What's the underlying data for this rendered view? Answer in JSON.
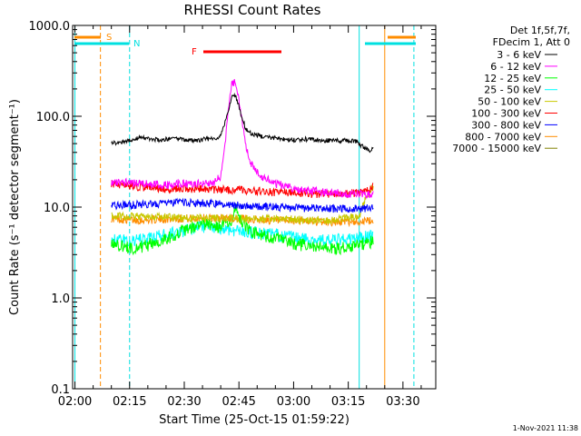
{
  "chart_data": {
    "type": "line",
    "title": "RHESSI Count Rates",
    "xlabel": "Start Time (25-Oct-15 01:59:22)",
    "ylabel": "Count Rate (s⁻¹ detector segment⁻¹)",
    "x_scale": "time",
    "y_scale": "log",
    "xlim": [
      "01:59:22",
      "03:39:00"
    ],
    "ylim": [
      0.1,
      1000
    ],
    "x_ticks": [
      "02:00",
      "02:15",
      "02:30",
      "02:45",
      "03:00",
      "03:15",
      "03:30"
    ],
    "x_tick_values": [
      120,
      135,
      150,
      165,
      180,
      195,
      210
    ],
    "y_ticks": [
      "0.1",
      "1.0",
      "10.0",
      "100.0",
      "1000.0"
    ],
    "y_tick_values": [
      0.1,
      1,
      10,
      100,
      1000
    ],
    "grid": false,
    "legend_position": "right",
    "legend_header": [
      "Det 1f,5f,7f,",
      "FDecim 1, Att 0"
    ],
    "series": [
      {
        "name": "3 - 6 keV",
        "color": "#000000",
        "x": [
          "02:10",
          "02:12",
          "02:15",
          "02:18",
          "02:21",
          "02:24",
          "02:27",
          "02:30",
          "02:33",
          "02:36",
          "02:39",
          "02:40",
          "02:41",
          "02:42",
          "02:43",
          "02:44",
          "02:45",
          "02:46",
          "02:47",
          "02:48",
          "02:49",
          "02:51",
          "02:54",
          "02:57",
          "03:00",
          "03:03",
          "03:06",
          "03:09",
          "03:12",
          "03:15",
          "03:17",
          "03:18",
          "03:19",
          "03:20",
          "03:21",
          "03:22"
        ],
        "values": [
          50,
          52,
          55,
          58,
          56,
          55,
          57,
          55,
          54,
          56,
          57,
          62,
          80,
          110,
          160,
          170,
          130,
          90,
          72,
          66,
          64,
          60,
          58,
          56,
          55,
          56,
          55,
          54,
          54,
          54,
          53,
          50,
          46,
          44,
          42,
          45
        ]
      },
      {
        "name": "6 - 12 keV",
        "color": "#ff00ff",
        "x": [
          "02:10",
          "02:15",
          "02:20",
          "02:25",
          "02:30",
          "02:35",
          "02:38",
          "02:40",
          "02:41",
          "02:42",
          "02:43",
          "02:44",
          "02:45",
          "02:46",
          "02:47",
          "02:48",
          "02:49",
          "02:50",
          "02:51",
          "02:53",
          "02:55",
          "02:58",
          "03:00",
          "03:05",
          "03:10",
          "03:15",
          "03:18",
          "03:20",
          "03:21",
          "03:22"
        ],
        "values": [
          19,
          18.5,
          18,
          17.5,
          18,
          18,
          18.5,
          22,
          40,
          110,
          220,
          240,
          150,
          80,
          45,
          32,
          28,
          24,
          22,
          20,
          18,
          17,
          16,
          15,
          14.5,
          14,
          14,
          14,
          14,
          14
        ]
      },
      {
        "name": "12 - 25 keV",
        "color": "#00ff00",
        "x": [
          "02:10",
          "02:15",
          "02:20",
          "02:25",
          "02:30",
          "02:35",
          "02:40",
          "02:43",
          "02:44",
          "02:45",
          "02:47",
          "02:50",
          "02:55",
          "03:00",
          "03:05",
          "03:10",
          "03:15",
          "03:20",
          "03:22"
        ],
        "values": [
          4,
          3.5,
          3.8,
          4.5,
          5.5,
          6.5,
          6,
          7,
          10,
          8,
          6,
          5,
          4.5,
          4,
          3.6,
          3.5,
          3.6,
          4,
          4.2
        ]
      },
      {
        "name": "25 - 50 keV",
        "color": "#00ffff",
        "x": [
          "02:10",
          "02:15",
          "02:20",
          "02:25",
          "02:30",
          "02:35",
          "02:40",
          "02:45",
          "02:50",
          "02:55",
          "03:00",
          "03:05",
          "03:10",
          "03:15",
          "03:20",
          "03:22"
        ],
        "values": [
          4.5,
          4.2,
          4.5,
          5,
          5.5,
          6,
          5.8,
          5.5,
          5.2,
          5,
          4.6,
          4.4,
          4.3,
          4.4,
          4.7,
          5
        ]
      },
      {
        "name": "50 - 100 keV",
        "color": "#c8c800",
        "x": [
          "02:10",
          "02:20",
          "02:30",
          "02:40",
          "02:50",
          "03:00",
          "03:10",
          "03:18",
          "03:20",
          "03:22"
        ],
        "values": [
          8,
          7.8,
          7.6,
          7.5,
          7.4,
          7.3,
          7.2,
          8,
          13,
          17
        ]
      },
      {
        "name": "100 - 300 keV",
        "color": "#ff0000",
        "x": [
          "02:10",
          "02:15",
          "02:20",
          "02:25",
          "02:30",
          "02:35",
          "02:40",
          "02:45",
          "02:50",
          "02:55",
          "03:00",
          "03:05",
          "03:10",
          "03:15",
          "03:20",
          "03:22"
        ],
        "values": [
          18,
          17,
          16.5,
          16,
          16,
          15.8,
          15.5,
          15.5,
          15,
          14.5,
          14.5,
          14,
          14,
          14,
          15,
          17
        ]
      },
      {
        "name": "300 - 800 keV",
        "color": "#0000ff",
        "x": [
          "02:10",
          "02:15",
          "02:20",
          "02:25",
          "02:30",
          "02:35",
          "02:40",
          "02:45",
          "02:50",
          "02:55",
          "03:00",
          "03:05",
          "03:10",
          "03:15",
          "03:20",
          "03:22"
        ],
        "values": [
          10.5,
          10.5,
          10.8,
          11,
          11.2,
          11,
          10.8,
          10.5,
          10.2,
          10,
          9.8,
          9.7,
          9.6,
          9.6,
          9.6,
          9.8
        ]
      },
      {
        "name": "800 - 7000 keV",
        "color": "#ff8c00",
        "x": [
          "02:10",
          "02:15",
          "02:20",
          "02:25",
          "02:30",
          "02:35",
          "02:40",
          "02:45",
          "02:50",
          "02:55",
          "03:00",
          "03:05",
          "03:10",
          "03:15",
          "03:20",
          "03:22"
        ],
        "values": [
          7.5,
          7.2,
          7.2,
          7.4,
          7.5,
          7.6,
          7.5,
          7.5,
          7.3,
          7.1,
          7,
          7,
          6.8,
          6.9,
          7,
          7
        ]
      },
      {
        "name": "7000 - 15000 keV",
        "color": "#808000",
        "x": [],
        "values": []
      }
    ],
    "interval_markers": [
      {
        "label": "S",
        "color": "#ff8c00"
      },
      {
        "label": "N",
        "color": "#00e0e0"
      },
      {
        "label": "F",
        "color": "#ff0000"
      }
    ],
    "vertical_lines": [
      {
        "x": "02:00",
        "style": "solid",
        "color": "#00e0e0"
      },
      {
        "x": "02:07",
        "style": "dashed",
        "color": "#ff8c00"
      },
      {
        "x": "02:15",
        "style": "dashed",
        "color": "#00e0e0"
      },
      {
        "x": "03:18",
        "style": "solid",
        "color": "#00e0e0"
      },
      {
        "x": "03:25",
        "style": "solid",
        "color": "#ff8c00"
      },
      {
        "x": "03:33",
        "style": "dashed",
        "color": "#00e0e0"
      }
    ],
    "timestamp": "1-Nov-2021 11:38"
  }
}
